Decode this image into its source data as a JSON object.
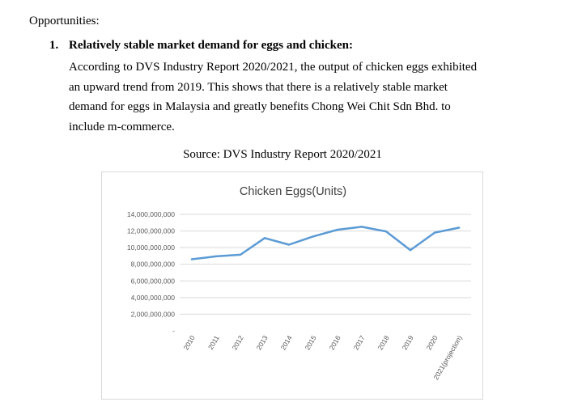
{
  "document": {
    "heading": "Opportunities:",
    "item_number": "1.",
    "item_title": "Relatively stable market demand for eggs and chicken:",
    "paragraph_lines": [
      "According to DVS Industry Report 2020/2021, the output of chicken eggs exhibited",
      "an upward trend from 2019. This shows that there is a relatively stable market",
      "demand for eggs in Malaysia and greatly benefits Chong Wei Chit Sdn Bhd. to",
      "include m-commerce."
    ],
    "caption": "Source: DVS Industry Report 2020/2021"
  },
  "chart_data": {
    "type": "line",
    "title": "Chicken Eggs(Units)",
    "xlabel": "",
    "ylabel": "",
    "categories": [
      "2010",
      "2011",
      "2012",
      "2013",
      "2014",
      "2015",
      "2016",
      "2017",
      "2018",
      "2019",
      "2020",
      "2021(projection)"
    ],
    "values": [
      8600000000,
      8950000000,
      9150000000,
      11150000000,
      10350000000,
      11350000000,
      12150000000,
      12500000000,
      11950000000,
      9700000000,
      11800000000,
      12400000000
    ],
    "y_ticks": [
      0,
      2000000000,
      4000000000,
      6000000000,
      8000000000,
      10000000000,
      12000000000,
      14000000000
    ],
    "y_tick_labels": [
      "-",
      "2,000,000,000",
      "4,000,000,000",
      "6,000,000,000",
      "8,000,000,000",
      "10,000,000,000",
      "12,000,000,000",
      "14,000,000,000"
    ],
    "ylim": [
      0,
      14000000000
    ],
    "grid": true,
    "line_color": "#5b9bd5",
    "grid_color": "#d9d9d9"
  }
}
